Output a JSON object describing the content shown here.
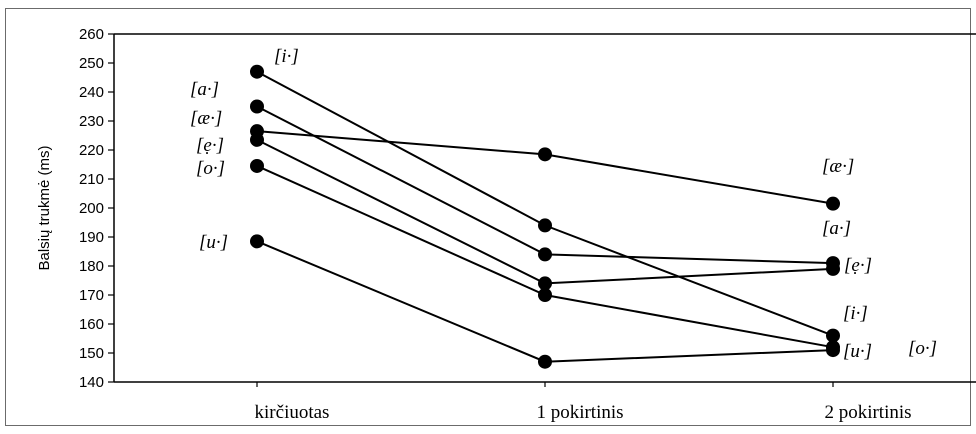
{
  "chart_data": {
    "type": "line",
    "ylabel": "Balsių trukmė (ms)",
    "xlabel": "",
    "ylim": [
      140,
      260
    ],
    "y_ticks": [
      "140",
      "150",
      "160",
      "170",
      "180",
      "190",
      "200",
      "210",
      "220",
      "230",
      "240",
      "250",
      "260"
    ],
    "categories": [
      "kirčiuotas",
      "1 pokirtinis",
      "2 pokirtinis"
    ],
    "grid": false,
    "series": [
      {
        "values": [
          247,
          194,
          156
        ]
      },
      {
        "values": [
          235,
          184,
          181
        ]
      },
      {
        "values": [
          226.5,
          218.5,
          201.5
        ]
      },
      {
        "values": [
          223.5,
          174,
          179
        ]
      },
      {
        "values": [
          214.5,
          170,
          152
        ]
      },
      {
        "values": [
          188.5,
          147,
          151
        ]
      }
    ],
    "annotations": [
      {
        "text": "[i·]"
      },
      {
        "text": "[a·]"
      },
      {
        "text": "[æ·]"
      },
      {
        "text": "[ẹ·]"
      },
      {
        "text": "[o·]"
      },
      {
        "text": "[u·]"
      },
      {
        "text": "[æ·]"
      },
      {
        "text": "[a·]"
      },
      {
        "text": "[ẹ·]"
      },
      {
        "text": "[i·]"
      },
      {
        "text": "[u·]"
      },
      {
        "text": "[o·]"
      }
    ]
  }
}
